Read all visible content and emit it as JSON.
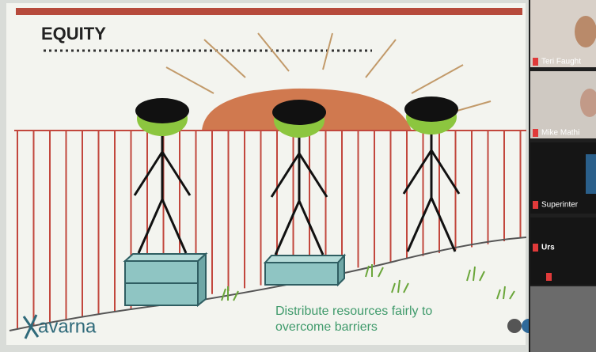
{
  "slide": {
    "title": "EQUITY",
    "caption": [
      "Distribute resources fairly to",
      "overcome barriers"
    ],
    "logo": "avarna"
  },
  "participants": [
    {
      "name": "Teri Faught"
    },
    {
      "name": "Mike Mathi"
    },
    {
      "name": "Superinter"
    },
    {
      "name": "Urs"
    }
  ]
}
